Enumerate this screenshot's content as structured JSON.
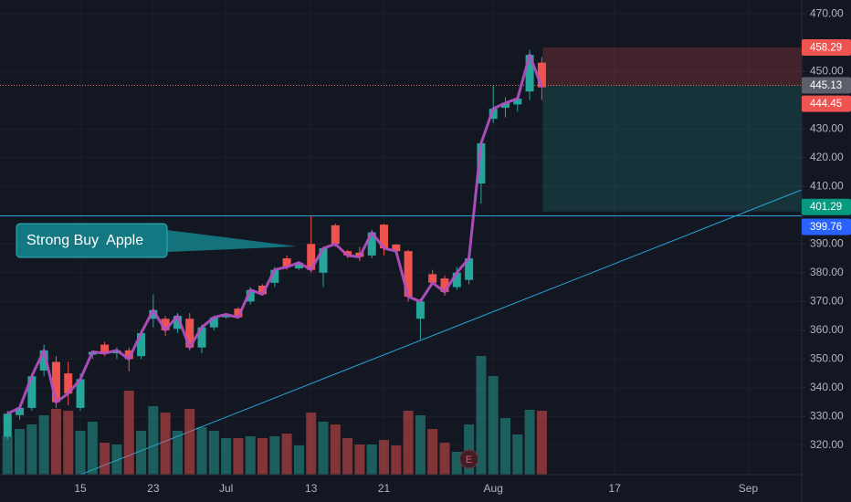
{
  "chart_data": {
    "type": "candlestick",
    "x": [
      -6,
      -5,
      -4,
      -3,
      -2,
      -1,
      0,
      1,
      2,
      3,
      4,
      5,
      6,
      7,
      8,
      9,
      10,
      11,
      12,
      13,
      14,
      15,
      16,
      17,
      18,
      19,
      20,
      21,
      22,
      23,
      24,
      25,
      26,
      27,
      28,
      29,
      30,
      31,
      32,
      33,
      34,
      35,
      36,
      37,
      38
    ],
    "open": [
      323,
      330.5,
      333,
      346,
      349,
      345,
      333,
      351.5,
      355,
      352,
      353,
      351,
      364,
      364,
      360.5,
      364,
      354,
      361,
      364.5,
      367.5,
      370,
      375.5,
      376.5,
      385,
      381.5,
      390,
      380,
      396.5,
      387.5,
      387,
      386,
      396.7,
      389.8,
      387.5,
      364,
      379.5,
      378,
      375,
      377.5,
      411,
      433.5,
      437.3,
      438.5,
      443,
      453
    ],
    "high": [
      332,
      334,
      345,
      355,
      351,
      349,
      345,
      353,
      356,
      354,
      354,
      360,
      372.5,
      365,
      366,
      366,
      362,
      365,
      366,
      368,
      375,
      376,
      382,
      386,
      384,
      399.8,
      389,
      397,
      388,
      389,
      395,
      397,
      390,
      388,
      371,
      381,
      379,
      382,
      386,
      426,
      445,
      441,
      442,
      457.5,
      455
    ],
    "low": [
      322,
      329,
      332,
      344,
      333,
      334,
      332,
      350,
      351,
      350,
      345.7,
      350,
      361,
      358,
      359,
      353,
      352,
      360,
      364,
      364,
      369,
      372,
      375,
      381,
      381,
      380,
      375,
      389,
      385,
      384,
      385,
      386,
      386,
      370,
      356.8,
      376,
      372,
      374,
      376,
      404,
      432,
      434,
      436,
      440,
      440
    ],
    "close": [
      331,
      333,
      344,
      353,
      335,
      338,
      343,
      352.5,
      352,
      353,
      350,
      359,
      367,
      360,
      365,
      354,
      361,
      364.5,
      365.5,
      364.5,
      374,
      372.5,
      381,
      382,
      383.5,
      381,
      388.5,
      390,
      386,
      385.5,
      394,
      388.5,
      387.5,
      371.7,
      370,
      376.5,
      373.3,
      380,
      385,
      425,
      437,
      439,
      440.5,
      455.7,
      444.45
    ],
    "volume": [
      42,
      50,
      55,
      65,
      72,
      70,
      48,
      58,
      35,
      33,
      92,
      48,
      75,
      68,
      48,
      72,
      52,
      48,
      40,
      40,
      42,
      40,
      42,
      45,
      32,
      68,
      58,
      55,
      40,
      33,
      33,
      38,
      32,
      70,
      65,
      50,
      35,
      25,
      55,
      130,
      108,
      62,
      44,
      71,
      70
    ],
    "volume_ylim": [
      0,
      175
    ],
    "up_color": "#26a69a",
    "down_color": "#ef5350",
    "line_color": "#b04fc0",
    "xlim": [
      -6.62,
      59.4
    ],
    "xticks": [
      {
        "value": 0,
        "label": "15"
      },
      {
        "value": 6,
        "label": "23"
      },
      {
        "value": 12,
        "label": "Jul"
      },
      {
        "value": 19,
        "label": "13"
      },
      {
        "value": 25,
        "label": "21"
      },
      {
        "value": 34,
        "label": "Aug"
      },
      {
        "value": 44,
        "label": "17"
      },
      {
        "value": 55,
        "label": "Sep"
      }
    ],
    "ylim": [
      300.3,
      474.8
    ],
    "yticks": [
      {
        "value": 320,
        "label": "320.00"
      },
      {
        "value": 330,
        "label": "330.00"
      },
      {
        "value": 340,
        "label": "340.00"
      },
      {
        "value": 350,
        "label": "350.00"
      },
      {
        "value": 360,
        "label": "360.00"
      },
      {
        "value": 370,
        "label": "370.00"
      },
      {
        "value": 380,
        "label": "380.00"
      },
      {
        "value": 390,
        "label": "390.00"
      },
      {
        "value": 410,
        "label": "410.00"
      },
      {
        "value": 420,
        "label": "420.00"
      },
      {
        "value": 430,
        "label": "430.00"
      },
      {
        "value": 450,
        "label": "450.00"
      },
      {
        "value": 470,
        "label": "470.00"
      }
    ],
    "grid": true,
    "position": {
      "stop": 458.29,
      "entry": 445.13,
      "target": 401.29
    },
    "last_price": 444.45,
    "horizontal_line": 399.76,
    "trendline": {
      "x": [
        0,
        59.4
      ],
      "values": [
        309.8,
        408.8
      ],
      "color": "#2aa3dc"
    },
    "annotation": "Strong Buy  Apple",
    "earnings": {
      "x": 32,
      "label": "E"
    }
  }
}
